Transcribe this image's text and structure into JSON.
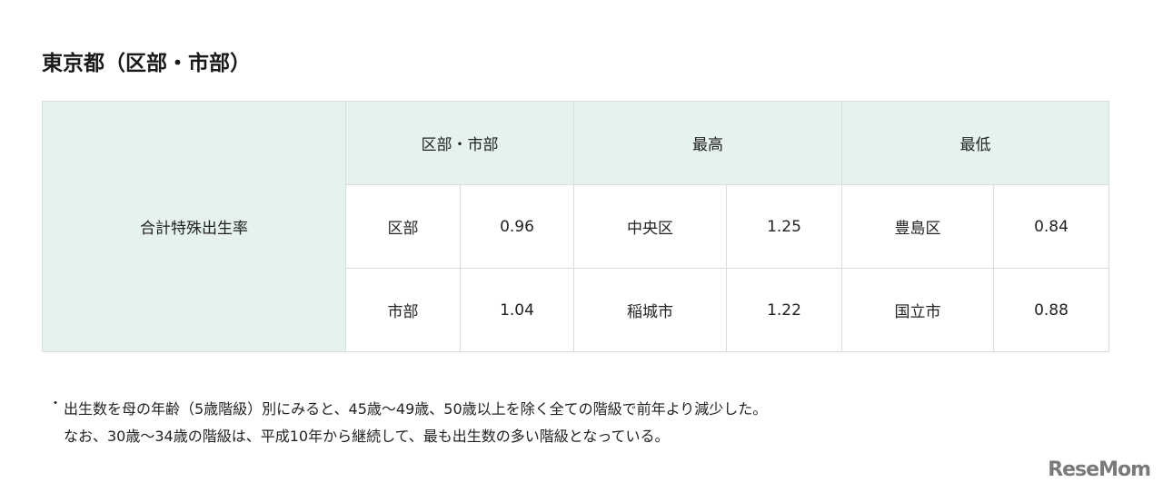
{
  "title": "東京都（区部・市部）",
  "table": {
    "row_label": "合計特殊出生率",
    "headers": [
      "区部・市部",
      "最高",
      "最低"
    ],
    "rows": [
      [
        "区部",
        "0.96",
        "中央区",
        "1.25",
        "豊島区",
        "0.84"
      ],
      [
        "市部",
        "1.04",
        "稲城市",
        "1.22",
        "国立市",
        "0.88"
      ]
    ]
  },
  "note": {
    "bullet": "・",
    "lines": [
      "出生数を母の年齢（5歳階級）別にみると、45歳～49歳、50歳以上を除く全ての階級で前年より減少した。",
      "なお、30歳～34歳の階級は、平成10年から継続して、最も出生数の多い階級となっている。"
    ]
  },
  "logo": "ReseMom",
  "colors": {
    "header_bg": "#e6f2ec",
    "border": "#d8dedb"
  }
}
